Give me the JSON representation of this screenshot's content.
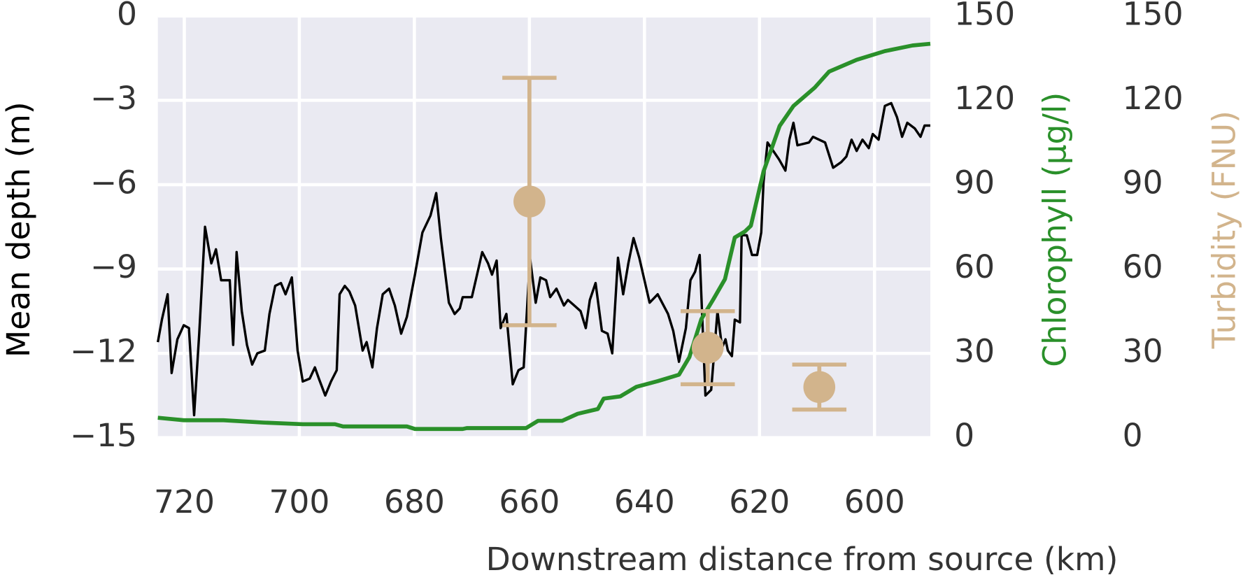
{
  "chart_data": {
    "type": "line",
    "xlabel": "Downstream distance from source (km)",
    "ylabel": "Mean depth (m)",
    "y2label": "Chlorophyll (µg/l)",
    "y3label": "Turbidity (FNU)",
    "xlim": [
      724.6,
      590.3
    ],
    "xticks": [
      720,
      700,
      680,
      660,
      640,
      620,
      600
    ],
    "ylim": [
      -15,
      0
    ],
    "yticks": [
      {
        "value": 0,
        "label": "0"
      },
      {
        "value": -3,
        "label": "−3"
      },
      {
        "value": -6,
        "label": "−6"
      },
      {
        "value": -9,
        "label": "−9"
      },
      {
        "value": -12,
        "label": "−12"
      },
      {
        "value": -15,
        "label": "−15"
      }
    ],
    "y2lim": [
      0,
      150
    ],
    "y2ticks": [
      0,
      30,
      60,
      90,
      120,
      150
    ],
    "y3lim": [
      0,
      150
    ],
    "y3ticks": [
      0,
      30,
      60,
      90,
      120,
      150
    ],
    "grid": true,
    "series": [
      {
        "type": "line",
        "axis": "y",
        "color": "#000000",
        "x": [
          724.6,
          723.9,
          722.9,
          722.2,
          721.2,
          720.1,
          719.2,
          718.3,
          717.4,
          716.4,
          715.3,
          714.5,
          713.6,
          712.1,
          711.5,
          710.9,
          710.0,
          709.1,
          708.2,
          707.3,
          706.0,
          705.2,
          704.2,
          703.2,
          702.4,
          701.3,
          700.3,
          699.4,
          698.2,
          697.3,
          696.6,
          695.5,
          694.5,
          693.5,
          693.0,
          692.1,
          691.3,
          690.3,
          689.0,
          688.3,
          687.3,
          686.5,
          685.5,
          684.4,
          683.4,
          682.3,
          681.3,
          679.9,
          678.6,
          677.2,
          676.2,
          675.4,
          674.0,
          673.0,
          672.1,
          671.6,
          670.0,
          669.1,
          668.2,
          667.2,
          666.5,
          665.7,
          665.0,
          664.0,
          662.9,
          661.9,
          661.0,
          659.9,
          658.9,
          658.1,
          657.1,
          656.4,
          655.3,
          654.0,
          653.3,
          652.2,
          651.1,
          650.2,
          649.5,
          648.5,
          647.4,
          646.4,
          645.6,
          644.6,
          643.7,
          642.8,
          641.9,
          640.9,
          639.1,
          637.7,
          635.9,
          635.0,
          634.0,
          632.8,
          632.0,
          631.2,
          630.4,
          629.4,
          628.4,
          627.3,
          626.5,
          625.9,
          625.5,
          624.8,
          624.3,
          623.4,
          623.1,
          622.2,
          621.3,
          620.4,
          619.7,
          619.3,
          618.6,
          617.6,
          616.6,
          615.5,
          614.8,
          614.1,
          613.4,
          611.4,
          610.7,
          608.6,
          607.2,
          605.8,
          604.9,
          604.0,
          603.1,
          602.1,
          601.0,
          600.3,
          599.3,
          598.2,
          597.1,
          596.1,
          595.2,
          594.3,
          593.0,
          592.0,
          591.3,
          590.3
        ],
        "values": [
          -11.6,
          -10.8,
          -9.9,
          -12.7,
          -11.5,
          -11.0,
          -11.1,
          -14.2,
          -11.3,
          -7.5,
          -8.8,
          -8.3,
          -9.4,
          -9.4,
          -11.7,
          -8.4,
          -10.5,
          -11.7,
          -12.4,
          -12.0,
          -11.9,
          -10.6,
          -9.6,
          -9.5,
          -9.9,
          -9.3,
          -11.9,
          -13.0,
          -12.9,
          -12.5,
          -12.9,
          -13.5,
          -13.0,
          -12.6,
          -9.9,
          -9.6,
          -9.8,
          -10.3,
          -11.9,
          -11.6,
          -12.5,
          -11.1,
          -9.9,
          -9.7,
          -10.3,
          -11.3,
          -10.7,
          -9.2,
          -7.7,
          -7.1,
          -6.3,
          -7.9,
          -10.2,
          -10.6,
          -10.4,
          -10.0,
          -10.0,
          -9.2,
          -8.4,
          -8.8,
          -9.2,
          -8.7,
          -11.1,
          -10.6,
          -13.1,
          -12.6,
          -12.5,
          -8.6,
          -10.2,
          -9.3,
          -9.4,
          -10.0,
          -9.7,
          -10.3,
          -10.1,
          -10.3,
          -10.5,
          -11.1,
          -10.1,
          -9.5,
          -11.2,
          -11.3,
          -12.0,
          -8.6,
          -9.9,
          -8.8,
          -7.9,
          -8.6,
          -10.2,
          -9.9,
          -10.6,
          -11.2,
          -12.3,
          -11.1,
          -9.4,
          -9.1,
          -8.5,
          -13.5,
          -13.3,
          -10.5,
          -11.8,
          -11.5,
          -11.9,
          -12.1,
          -10.8,
          -10.9,
          -7.8,
          -7.8,
          -8.5,
          -8.5,
          -7.7,
          -5.9,
          -4.5,
          -4.8,
          -5.1,
          -5.5,
          -4.4,
          -3.8,
          -4.6,
          -4.5,
          -4.3,
          -4.5,
          -5.4,
          -5.2,
          -5.0,
          -4.4,
          -4.8,
          -4.4,
          -4.7,
          -4.2,
          -4.4,
          -3.2,
          -3.1,
          -3.6,
          -4.3,
          -3.8,
          -4.0,
          -4.3,
          -3.9,
          -3.9
        ]
      },
      {
        "type": "line",
        "axis": "y2",
        "color": "#2a902a",
        "x": [
          724.6,
          720.1,
          713.2,
          706.3,
          699.4,
          693.8,
          692.4,
          681.3,
          679.9,
          671.6,
          670.9,
          660.6,
          658.5,
          654.3,
          651.6,
          648.1,
          647.1,
          644.2,
          641.4,
          637.7,
          634.0,
          632.2,
          630.1,
          628.0,
          626.0,
          624.3,
          622.5,
          621.5,
          619.3,
          616.5,
          614.1,
          610.4,
          607.9,
          603.1,
          598.2,
          593.4,
          590.3
        ],
        "values": [
          7.1,
          6.2,
          6.2,
          5.4,
          4.8,
          4.8,
          4.0,
          4.0,
          3.1,
          3.1,
          3.4,
          3.4,
          6.0,
          6.0,
          8.5,
          10.2,
          13.9,
          14.7,
          18.1,
          20.1,
          22.4,
          28.6,
          42.2,
          49.3,
          56.4,
          71.2,
          73.4,
          75.4,
          94.7,
          110.9,
          118.0,
          124.5,
          130.2,
          134.4,
          137.5,
          139.5,
          140.1
        ]
      },
      {
        "type": "scatter",
        "axis": "y3",
        "color": "#d2b48c",
        "x": [
          660,
          629,
          609.6
        ],
        "values": [
          84,
          32,
          18
        ],
        "errors": [
          44,
          13,
          8
        ]
      }
    ]
  }
}
